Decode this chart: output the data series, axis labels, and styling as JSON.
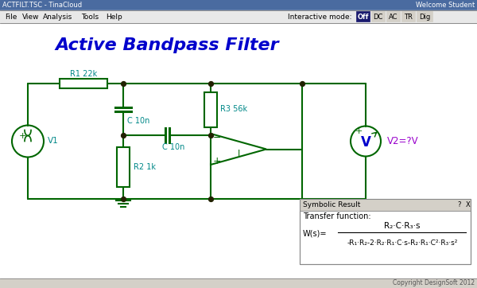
{
  "title": "Active Bandpass Filter",
  "title_color": "#0000CC",
  "title_fontsize": 16,
  "bg_color": "#C8C8C8",
  "circuit_bg": "#FFFFFF",
  "circuit_color": "#006600",
  "label_color": "#008888",
  "v2_label_color": "#9900CC",
  "component_labels": {
    "R1": "R1 22k",
    "R2": "R2 1k",
    "R3": "R3 56k",
    "C1": "C 10n",
    "C2": "C 10n",
    "V1": "V1",
    "V2": "V2=?V"
  },
  "transfer_title": "Symbolic Result",
  "transfer_function_label": "Transfer function:",
  "transfer_numerator": "R₂·C·R₃·s",
  "transfer_denominator": "-R₁·R₂-2·R₂·R₁·C·s-R₂·R₁·C²·R₃·s²",
  "transfer_lhs": "W(s)=",
  "copyright": "Copyright DesignSoft 2012",
  "menu_items": [
    "File",
    "View",
    "Analysis",
    "Tools",
    "Help"
  ],
  "app_title": "ACTFILT.TSC - TinaCloud",
  "mode_label": "Interactive mode:",
  "mode_buttons": [
    "Off",
    "DC",
    "AC",
    "TR",
    "Dig"
  ],
  "titlebar_bg": "#4A6BA0",
  "menubar_bg": "#E8E8E8",
  "statusbar_bg": "#D4D0C8"
}
